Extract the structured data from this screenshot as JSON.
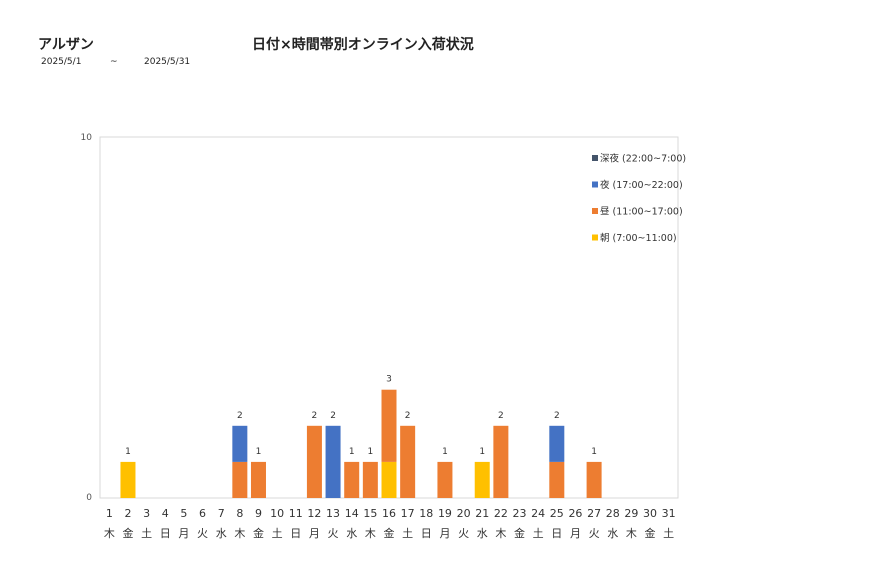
{
  "header": {
    "store_name": "アルザン",
    "title": "日付×時間帯別オンライン入荷状況",
    "date_from": "2025/5/1",
    "tilde": "~",
    "date_to": "2025/5/31"
  },
  "colors": {
    "late_night": "#44546A",
    "night": "#4472C4",
    "day": "#ED7D31",
    "morning": "#FFC000"
  },
  "chart_data": {
    "type": "bar",
    "stacked": true,
    "categories": [
      "1",
      "2",
      "3",
      "4",
      "5",
      "6",
      "7",
      "8",
      "9",
      "10",
      "11",
      "12",
      "13",
      "14",
      "15",
      "16",
      "17",
      "18",
      "19",
      "20",
      "21",
      "22",
      "23",
      "24",
      "25",
      "26",
      "27",
      "28",
      "29",
      "30",
      "31"
    ],
    "weekdays": [
      "木",
      "金",
      "土",
      "日",
      "月",
      "火",
      "水",
      "木",
      "金",
      "土",
      "日",
      "月",
      "火",
      "水",
      "木",
      "金",
      "土",
      "日",
      "月",
      "火",
      "水",
      "木",
      "金",
      "土",
      "日",
      "月",
      "火",
      "水",
      "木",
      "金",
      "土"
    ],
    "series": [
      {
        "name": "朝 (7:00~11:00)",
        "key": "morning",
        "values": [
          0,
          1,
          0,
          0,
          0,
          0,
          0,
          0,
          0,
          0,
          0,
          0,
          0,
          0,
          0,
          1,
          0,
          0,
          0,
          0,
          1,
          0,
          0,
          0,
          0,
          0,
          0,
          0,
          0,
          0,
          0
        ]
      },
      {
        "name": "昼 (11:00~17:00)",
        "key": "day",
        "values": [
          0,
          0,
          0,
          0,
          0,
          0,
          0,
          1,
          1,
          0,
          0,
          2,
          0,
          1,
          1,
          2,
          2,
          0,
          1,
          0,
          0,
          2,
          0,
          0,
          1,
          0,
          1,
          0,
          0,
          0,
          0
        ]
      },
      {
        "name": "夜 (17:00~22:00)",
        "key": "night",
        "values": [
          0,
          0,
          0,
          0,
          0,
          0,
          0,
          1,
          0,
          0,
          0,
          0,
          2,
          0,
          0,
          0,
          0,
          0,
          0,
          0,
          0,
          0,
          0,
          0,
          1,
          0,
          0,
          0,
          0,
          0,
          0
        ]
      },
      {
        "name": "深夜 (22:00~7:00)",
        "key": "late_night",
        "values": [
          0,
          0,
          0,
          0,
          0,
          0,
          0,
          0,
          0,
          0,
          0,
          0,
          0,
          0,
          0,
          0,
          0,
          0,
          0,
          0,
          0,
          0,
          0,
          0,
          0,
          0,
          0,
          0,
          0,
          0,
          0
        ]
      }
    ],
    "ylim": [
      0,
      10
    ],
    "yticks": [
      "0",
      "10"
    ],
    "legend_position": "top-right",
    "grid": false
  }
}
